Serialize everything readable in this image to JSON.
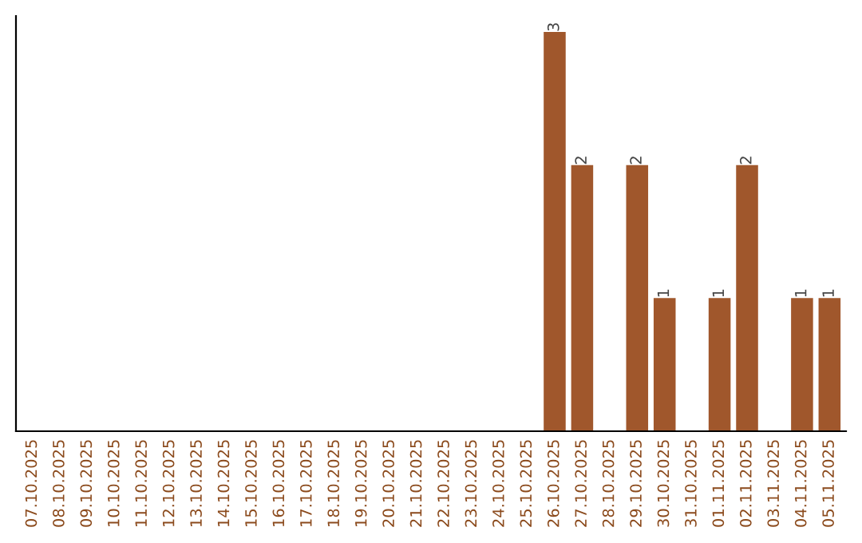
{
  "chart_data": {
    "type": "bar",
    "categories": [
      "07.10.2025",
      "08.10.2025",
      "09.10.2025",
      "10.10.2025",
      "11.10.2025",
      "12.10.2025",
      "13.10.2025",
      "14.10.2025",
      "15.10.2025",
      "16.10.2025",
      "17.10.2025",
      "18.10.2025",
      "19.10.2025",
      "20.10.2025",
      "21.10.2025",
      "22.10.2025",
      "23.10.2025",
      "24.10.2025",
      "25.10.2025",
      "26.10.2025",
      "27.10.2025",
      "28.10.2025",
      "29.10.2025",
      "30.10.2025",
      "31.10.2025",
      "01.11.2025",
      "02.11.2025",
      "03.11.2025",
      "04.11.2025",
      "05.11.2025"
    ],
    "values": [
      null,
      null,
      null,
      null,
      null,
      null,
      null,
      null,
      null,
      null,
      null,
      null,
      null,
      null,
      null,
      null,
      null,
      null,
      null,
      3,
      2,
      null,
      2,
      1,
      null,
      1,
      2,
      null,
      1,
      1
    ],
    "value_labels": [
      null,
      null,
      null,
      null,
      null,
      null,
      null,
      null,
      null,
      null,
      null,
      null,
      null,
      null,
      null,
      null,
      null,
      null,
      null,
      "3",
      "2",
      null,
      "2",
      "1",
      null,
      "1",
      "2",
      null,
      "1",
      "1"
    ],
    "color": "#a0572c",
    "tick_labels": "x",
    "grid": false,
    "legend": false
  }
}
